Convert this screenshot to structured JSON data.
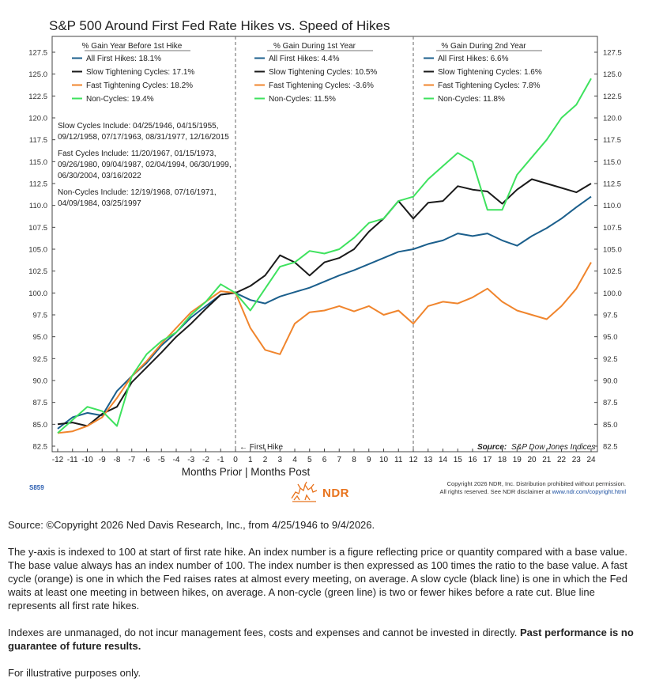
{
  "chart_data": {
    "type": "line",
    "title": "S&P 500 Around First Fed Rate Hikes vs. Speed of Hikes",
    "xlabel": "Months Prior | Months Post",
    "x_ticks": [
      "-12",
      "-11",
      "-10",
      "-9",
      "-8",
      "-7",
      "-6",
      "-5",
      "-4",
      "-3",
      "-2",
      "-1",
      "0",
      "1",
      "2",
      "3",
      "4",
      "5",
      "6",
      "7",
      "8",
      "9",
      "10",
      "11",
      "12",
      "13",
      "14",
      "15",
      "16",
      "17",
      "18",
      "19",
      "20",
      "21",
      "22",
      "23",
      "24"
    ],
    "xlim": [
      -12,
      24
    ],
    "ylim": [
      82.5,
      127.5
    ],
    "y_ticks": [
      "82.5",
      "85.0",
      "87.5",
      "90.0",
      "92.5",
      "95.0",
      "97.5",
      "100.0",
      "102.5",
      "105.0",
      "107.5",
      "110.0",
      "112.5",
      "115.0",
      "117.5",
      "120.0",
      "122.5",
      "125.0",
      "127.5"
    ],
    "series": [
      {
        "name": "All First Hikes",
        "color": "#1b5f8c",
        "x": [
          -12,
          -11,
          -10,
          -9,
          -8,
          -7,
          -6,
          -5,
          -4,
          -3,
          -2,
          -1,
          0,
          1,
          2,
          3,
          4,
          5,
          6,
          7,
          8,
          9,
          10,
          11,
          12,
          13,
          14,
          15,
          16,
          17,
          18,
          19,
          20,
          21,
          22,
          23,
          24
        ],
        "y": [
          84.5,
          85.8,
          86.3,
          86.0,
          88.8,
          90.5,
          92.0,
          94.0,
          95.5,
          97.2,
          98.5,
          99.8,
          100.0,
          99.2,
          98.8,
          99.6,
          100.1,
          100.6,
          101.3,
          102.0,
          102.6,
          103.3,
          104.0,
          104.7,
          105.0,
          105.6,
          106.0,
          106.8,
          106.5,
          106.8,
          106.0,
          105.4,
          106.5,
          107.4,
          108.5,
          109.8,
          111.0
        ]
      },
      {
        "name": "Slow Tightening Cycles",
        "color": "#1a1a1a",
        "x": [
          -12,
          -11,
          -10,
          -9,
          -8,
          -7,
          -6,
          -5,
          -4,
          -3,
          -2,
          -1,
          0,
          1,
          2,
          3,
          4,
          5,
          6,
          7,
          8,
          9,
          10,
          11,
          12,
          13,
          14,
          15,
          16,
          17,
          18,
          19,
          20,
          21,
          22,
          23,
          24
        ],
        "y": [
          85.0,
          85.2,
          84.8,
          86.2,
          87.0,
          89.8,
          91.5,
          93.2,
          95.0,
          96.5,
          98.2,
          99.8,
          100.0,
          100.8,
          102.0,
          104.3,
          103.5,
          102.0,
          103.5,
          104.0,
          105.0,
          107.0,
          108.5,
          110.5,
          108.5,
          110.3,
          110.5,
          112.2,
          111.8,
          111.6,
          110.2,
          111.8,
          113.0,
          112.5,
          112.0,
          111.5,
          112.5
        ]
      },
      {
        "name": "Fast Tightening Cycles",
        "color": "#f0852d",
        "x": [
          -12,
          -11,
          -10,
          -9,
          -8,
          -7,
          -6,
          -5,
          -4,
          -3,
          -2,
          -1,
          0,
          1,
          2,
          3,
          4,
          5,
          6,
          7,
          8,
          9,
          10,
          11,
          12,
          13,
          14,
          15,
          16,
          17,
          18,
          19,
          20,
          21,
          22,
          23,
          24
        ],
        "y": [
          84.0,
          84.2,
          84.8,
          85.8,
          88.0,
          90.5,
          92.2,
          94.2,
          96.0,
          97.8,
          99.0,
          100.2,
          100.0,
          96.0,
          93.5,
          93.0,
          96.5,
          97.8,
          98.0,
          98.5,
          97.9,
          98.5,
          97.5,
          98.0,
          96.5,
          98.5,
          99.0,
          98.8,
          99.5,
          100.5,
          99.0,
          98.0,
          97.5,
          97.0,
          98.5,
          100.5,
          103.5
        ]
      },
      {
        "name": "Non-Cycles",
        "color": "#3ee25e",
        "x": [
          -12,
          -11,
          -10,
          -9,
          -8,
          -7,
          -6,
          -5,
          -4,
          -3,
          -2,
          -1,
          0,
          1,
          2,
          3,
          4,
          5,
          6,
          7,
          8,
          9,
          10,
          11,
          12,
          13,
          14,
          15,
          16,
          17,
          18,
          19,
          20,
          21,
          22,
          23,
          24
        ],
        "y": [
          84.0,
          85.5,
          87.0,
          86.5,
          84.8,
          90.5,
          93.0,
          94.5,
          95.5,
          97.5,
          99.0,
          101.0,
          100.0,
          98.0,
          100.5,
          103.0,
          103.5,
          104.8,
          104.5,
          105.0,
          106.3,
          108.0,
          108.5,
          110.5,
          111.0,
          113.0,
          114.5,
          116.0,
          115.0,
          109.5,
          109.5,
          113.5,
          115.5,
          117.5,
          120.0,
          121.5,
          124.5
        ]
      }
    ],
    "legend_columns": [
      {
        "heading": "% Gain Year Before 1st Hike",
        "entries": [
          "All First Hikes: 18.1%",
          "Slow Tightening Cycles: 17.1%",
          "Fast Tightening Cycles: 18.2%",
          "Non-Cycles: 19.4%"
        ]
      },
      {
        "heading": "% Gain During 1st Year",
        "entries": [
          "All First Hikes: 4.4%",
          "Slow Tightening Cycles: 10.5%",
          "Fast Tightening Cycles: -3.6%",
          "Non-Cycles: 11.5%"
        ]
      },
      {
        "heading": "% Gain During 2nd Year",
        "entries": [
          "All First Hikes: 6.6%",
          "Slow Tightening Cycles: 1.6%",
          "Fast Tightening Cycles: 7.8%",
          "Non-Cycles: 11.8%"
        ]
      }
    ],
    "notes": [
      [
        "Slow Cycles Include: 04/25/1946, 04/15/1955,",
        "09/12/1958, 07/17/1963, 08/31/1977, 12/16/2015"
      ],
      [
        "Fast Cycles Include: 11/20/1967, 01/15/1973,",
        "09/26/1980, 09/04/1987, 02/04/1994, 06/30/1999,",
        "06/30/2004, 03/16/2022"
      ],
      [
        "Non-Cycles Include: 12/19/1968, 07/16/1971,",
        "04/09/1984, 03/25/1997"
      ]
    ],
    "annotation_first_hike": "← First Hike",
    "source_label": "Source:",
    "source_text": "S&P Dow Jones Indices",
    "grid": false,
    "legend_placement": "top"
  },
  "footer": {
    "chart_id": "S859",
    "logo_text": "NDR",
    "copyright_line1": "Copyright 2026 NDR, Inc. Distribution prohibited without permission.",
    "copyright_line2_prefix": "All rights reserved. See NDR disclaimer at ",
    "copyright_link": "www.ndr.com/copyright.html"
  },
  "caption": {
    "source": "Source: ©Copyright 2026 Ned Davis Research, Inc., from 4/25/1946 to 9/4/2026.",
    "explanation": "The y-axis is indexed to 100 at start of first rate hike. An index number is a figure reflecting price or quantity compared with a base value. The base value always has an index number of 100. The index number is then expressed as 100 times the ratio to the base value. A fast cycle (orange) is one in which the Fed raises rates at almost every meeting, on average. A slow cycle (black line) is one in which the Fed waits at least one meeting in between hikes, on average. A non-cycle (green line) is two or fewer hikes before a rate cut. Blue line represents all first rate hikes.",
    "disclaimer_plain": "Indexes are unmanaged, do not incur management fees, costs and expenses and cannot be invested in directly. ",
    "disclaimer_bold": "Past performance is no guarantee of future results.",
    "illustrative": "For illustrative purposes only."
  }
}
